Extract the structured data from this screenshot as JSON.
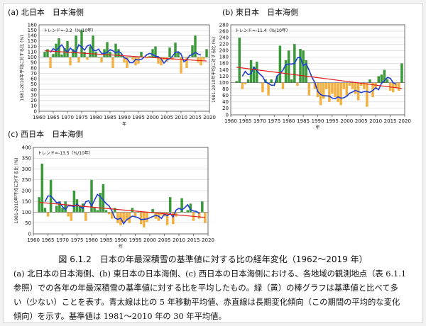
{
  "caption": {
    "title": "図 6.1.2　日本の年最深積雪の基準値に対する比の経年変化（1962～2019 年）",
    "lines": [
      "(a) 北日本の日本海側、(b) 東日本の日本海側、(c) 西日本の日本海側における、各地域の観測地点（表 6.1.1",
      "参照）での各年の年最深積雪の基準値に対する比を平均したもの。緑（黄）の棒グラフは基準値と比べて多",
      "い（少ない）ことを表す。青太線は比の 5 年移動平均値、赤直線は長期変化傾向（この期間の平均的な変化",
      "傾向）を示す。基準値は 1981～2010 年の 30 年平均値。"
    ]
  },
  "colors": {
    "above": "#3a9a3a",
    "below": "#f5b042",
    "moving_average": "#1f3fd0",
    "trend": "#e02020",
    "grid": "#c8c8c8"
  },
  "chart_data": [
    {
      "type": "bar",
      "panel_label": "(a)",
      "title": "北日本　日本海側",
      "ylabel": "1981-2010年平均に対する比 (%)",
      "xlabel": "年",
      "trend_label": "トレンド=-3.2（%/10年）",
      "ylim": [
        0,
        160
      ],
      "yticks": [
        0,
        10,
        20,
        30,
        40,
        50,
        60,
        70,
        80,
        90,
        100,
        110,
        120,
        130,
        140,
        150,
        160
      ],
      "xlim": [
        1960,
        2020
      ],
      "xticks": [
        1960,
        1965,
        1970,
        1975,
        1980,
        1985,
        1990,
        1995,
        2000,
        2005,
        2010,
        2015,
        2020
      ],
      "baseline": 100,
      "years_start": 1962,
      "values": [
        110,
        115,
        80,
        106,
        125,
        135,
        105,
        117,
        130,
        85,
        115,
        140,
        90,
        150,
        110,
        95,
        120,
        140,
        110,
        100,
        90,
        115,
        128,
        110,
        80,
        125,
        115,
        105,
        90,
        80,
        100,
        95,
        85,
        88,
        110,
        100,
        98,
        102,
        115,
        120,
        88,
        85,
        95,
        92,
        118,
        95,
        127,
        110,
        70,
        100,
        80,
        100,
        122,
        140,
        90,
        85,
        95,
        115
      ],
      "moving_average": [
        null,
        null,
        109,
        116,
        112,
        118,
        123,
        115,
        109,
        117,
        112,
        110,
        123,
        119,
        113,
        121,
        123,
        113,
        112,
        115,
        107,
        107,
        109,
        114,
        112,
        108,
        111,
        107,
        99,
        97,
        90,
        90,
        96,
        95,
        96,
        100,
        105,
        107,
        105,
        102,
        101,
        97,
        89,
        95,
        97,
        102,
        109,
        110,
        106,
        92,
        95,
        103,
        105,
        109,
        106,
        104,
        null,
        null
      ],
      "trend": {
        "start": 112,
        "end": 93
      }
    },
    {
      "type": "bar",
      "panel_label": "(b)",
      "title": "東日本　日本海側",
      "ylabel": "1981-2010年平均に対する比 (%)",
      "xlabel": "年",
      "trend_label": "トレンド=-11.4（%/10年）",
      "ylim": [
        0,
        280
      ],
      "yticks": [
        0,
        20,
        40,
        60,
        80,
        100,
        120,
        140,
        160,
        180,
        200,
        220,
        240,
        260,
        280
      ],
      "xlim": [
        1960,
        2020
      ],
      "xticks": [
        1960,
        1965,
        1970,
        1975,
        1980,
        1985,
        1990,
        1995,
        2000,
        2005,
        2010,
        2015,
        2020
      ],
      "baseline": 100,
      "years_start": 1962,
      "values": [
        105,
        240,
        80,
        95,
        110,
        170,
        150,
        165,
        100,
        70,
        110,
        60,
        110,
        100,
        120,
        215,
        80,
        170,
        200,
        110,
        220,
        90,
        205,
        200,
        170,
        60,
        100,
        80,
        55,
        30,
        50,
        80,
        40,
        65,
        55,
        40,
        30,
        80,
        60,
        90,
        80,
        65,
        45,
        90,
        80,
        25,
        110,
        55,
        80,
        120,
        125,
        140,
        110,
        75,
        70,
        85,
        75,
        160
      ],
      "moving_average": [
        null,
        null,
        120,
        135,
        125,
        128,
        148,
        137,
        127,
        119,
        102,
        98,
        92,
        92,
        121,
        129,
        139,
        157,
        158,
        158,
        160,
        177,
        179,
        153,
        159,
        139,
        117,
        100,
        73,
        63,
        59,
        59,
        58,
        52,
        50,
        56,
        52,
        53,
        58,
        67,
        71,
        76,
        72,
        69,
        72,
        72,
        70,
        76,
        84,
        78,
        98,
        106,
        116,
        114,
        100,
        95,
        null,
        null
      ],
      "trend": {
        "start": 148,
        "end": 82
      }
    },
    {
      "type": "bar",
      "panel_label": "(c)",
      "title": "西日本　日本海側",
      "ylabel": "1981-2010年平均に対する比 (%)",
      "xlabel": "年",
      "trend_label": "トレンド=-13.5（%/10年）",
      "ylim": [
        0,
        400
      ],
      "yticks": [
        0,
        50,
        100,
        150,
        200,
        250,
        300,
        350,
        400
      ],
      "xlim": [
        1960,
        2020
      ],
      "xticks": [
        1960,
        1965,
        1970,
        1975,
        1980,
        1985,
        1990,
        1995,
        2000,
        2005,
        2010,
        2015,
        2020
      ],
      "baseline": 100,
      "years_start": 1962,
      "values": [
        170,
        325,
        120,
        80,
        250,
        100,
        130,
        150,
        120,
        150,
        80,
        60,
        200,
        160,
        130,
        140,
        60,
        100,
        250,
        120,
        110,
        190,
        230,
        110,
        90,
        70,
        120,
        50,
        40,
        55,
        60,
        50,
        120,
        80,
        100,
        45,
        30,
        55,
        100,
        115,
        70,
        60,
        85,
        80,
        40,
        170,
        45,
        80,
        100,
        165,
        100,
        110,
        140,
        60,
        100,
        70,
        150,
        50
      ],
      "moving_average": [
        null,
        null,
        149,
        175,
        175,
        160,
        144,
        146,
        126,
        112,
        130,
        130,
        126,
        138,
        126,
        118,
        148,
        154,
        128,
        156,
        182,
        172,
        156,
        140,
        130,
        106,
        74,
        67,
        73,
        47,
        65,
        73,
        82,
        79,
        75,
        66,
        68,
        69,
        74,
        80,
        86,
        82,
        71,
        91,
        84,
        95,
        78,
        110,
        118,
        111,
        121,
        135,
        112,
        106,
        104,
        94,
        null,
        null
      ],
      "trend": {
        "start": 146,
        "end": 76
      }
    }
  ]
}
